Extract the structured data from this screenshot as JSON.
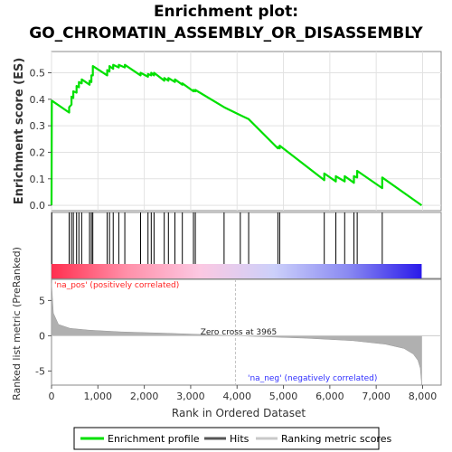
{
  "chart_data": {
    "type": "line",
    "title_line1": "Enrichment plot:",
    "title_line2": "GO_CHROMATIN_ASSEMBLY_OR_DISASSEMBLY",
    "es_ylabel": "Enrichment score (ES)",
    "rank_ylabel": "Ranked list metric (PreRanked)",
    "xlabel": "Rank in Ordered Dataset",
    "xlim": [
      0,
      8400
    ],
    "es_ylim": [
      -0.02,
      0.58
    ],
    "metric_ylim": [
      -7,
      8
    ],
    "x_ticks": [
      0,
      1000,
      2000,
      3000,
      4000,
      5000,
      6000,
      7000,
      8000
    ],
    "x_tick_labels": [
      "0",
      "1,000",
      "2,000",
      "3,000",
      "4,000",
      "5,000",
      "6,000",
      "7,000",
      "8,000"
    ],
    "es_ticks": [
      0.0,
      0.1,
      0.2,
      0.3,
      0.4,
      0.5
    ],
    "es_tick_labels": [
      "0.0",
      "0.1",
      "0.2",
      "0.3",
      "0.4",
      "0.5"
    ],
    "metric_ticks": [
      -5,
      0,
      5
    ],
    "metric_tick_labels": [
      "-5",
      "0",
      "5"
    ],
    "zero_cross_label": "Zero cross at 3965",
    "zero_cross_rank": 3965,
    "pos_label": "'na_pos' (positively correlated)",
    "neg_label": "'na_neg' (negatively correlated)",
    "n_genes": 7980,
    "hits": [
      5,
      380,
      430,
      470,
      540,
      590,
      650,
      820,
      860,
      890,
      1200,
      1250,
      1330,
      1450,
      1580,
      1920,
      2080,
      2150,
      2210,
      2430,
      2520,
      2660,
      2820,
      3060,
      3100,
      3720,
      4070,
      4250,
      4880,
      4920,
      5880,
      6130,
      6320,
      6520,
      6590,
      7130
    ],
    "es_points": [
      [
        0,
        0
      ],
      [
        5,
        0.395
      ],
      [
        380,
        0.35
      ],
      [
        380,
        0.37
      ],
      [
        430,
        0.38
      ],
      [
        430,
        0.41
      ],
      [
        470,
        0.405
      ],
      [
        470,
        0.43
      ],
      [
        540,
        0.425
      ],
      [
        540,
        0.45
      ],
      [
        590,
        0.445
      ],
      [
        590,
        0.465
      ],
      [
        650,
        0.46
      ],
      [
        650,
        0.475
      ],
      [
        820,
        0.455
      ],
      [
        820,
        0.47
      ],
      [
        860,
        0.465
      ],
      [
        860,
        0.49
      ],
      [
        890,
        0.49
      ],
      [
        890,
        0.525
      ],
      [
        1200,
        0.49
      ],
      [
        1200,
        0.51
      ],
      [
        1250,
        0.505
      ],
      [
        1250,
        0.525
      ],
      [
        1330,
        0.515
      ],
      [
        1330,
        0.53
      ],
      [
        1450,
        0.52
      ],
      [
        1450,
        0.53
      ],
      [
        1580,
        0.52
      ],
      [
        1580,
        0.53
      ],
      [
        1920,
        0.49
      ],
      [
        1920,
        0.5
      ],
      [
        2080,
        0.485
      ],
      [
        2080,
        0.495
      ],
      [
        2150,
        0.49
      ],
      [
        2150,
        0.5
      ],
      [
        2210,
        0.49
      ],
      [
        2210,
        0.5
      ],
      [
        2430,
        0.47
      ],
      [
        2430,
        0.48
      ],
      [
        2520,
        0.47
      ],
      [
        2520,
        0.48
      ],
      [
        2660,
        0.465
      ],
      [
        2660,
        0.475
      ],
      [
        2820,
        0.455
      ],
      [
        2820,
        0.46
      ],
      [
        3060,
        0.43
      ],
      [
        3060,
        0.435
      ],
      [
        3100,
        0.43
      ],
      [
        3100,
        0.435
      ],
      [
        3720,
        0.37
      ],
      [
        4070,
        0.34
      ],
      [
        4250,
        0.325
      ],
      [
        4880,
        0.215
      ],
      [
        4880,
        0.22
      ],
      [
        4920,
        0.215
      ],
      [
        4920,
        0.225
      ],
      [
        5880,
        0.095
      ],
      [
        5880,
        0.12
      ],
      [
        6130,
        0.09
      ],
      [
        6130,
        0.11
      ],
      [
        6320,
        0.09
      ],
      [
        6320,
        0.11
      ],
      [
        6520,
        0.085
      ],
      [
        6520,
        0.11
      ],
      [
        6590,
        0.105
      ],
      [
        6590,
        0.13
      ],
      [
        7130,
        0.065
      ],
      [
        7130,
        0.105
      ],
      [
        7980,
        0.0
      ]
    ],
    "metric_profile": [
      [
        0,
        7.5
      ],
      [
        40,
        3.2
      ],
      [
        150,
        1.6
      ],
      [
        400,
        1.05
      ],
      [
        800,
        0.8
      ],
      [
        1500,
        0.55
      ],
      [
        2500,
        0.35
      ],
      [
        3500,
        0.12
      ],
      [
        3965,
        0.0
      ],
      [
        4500,
        -0.12
      ],
      [
        5500,
        -0.35
      ],
      [
        6500,
        -0.7
      ],
      [
        7200,
        -1.2
      ],
      [
        7600,
        -1.8
      ],
      [
        7800,
        -2.6
      ],
      [
        7900,
        -3.5
      ],
      [
        7950,
        -4.6
      ],
      [
        7975,
        -6.5
      ],
      [
        7980,
        -7.0
      ]
    ],
    "legend": {
      "enrichment_profile": "Enrichment profile",
      "hits": "Hits",
      "ranking_metric": "Ranking metric scores"
    },
    "colors": {
      "es_line": "#00e000",
      "hit": "#000000",
      "metric_fill": "#b0b0b0",
      "zero_line": "#c0c0c0",
      "pos_label": "#ff2020",
      "neg_label": "#3030ff",
      "heat_stops": [
        "#ff2f4f",
        "#ff8fa8",
        "#fcc8e2",
        "#ccd0fa",
        "#8a8af2",
        "#2a1aea"
      ]
    },
    "grid": true
  }
}
